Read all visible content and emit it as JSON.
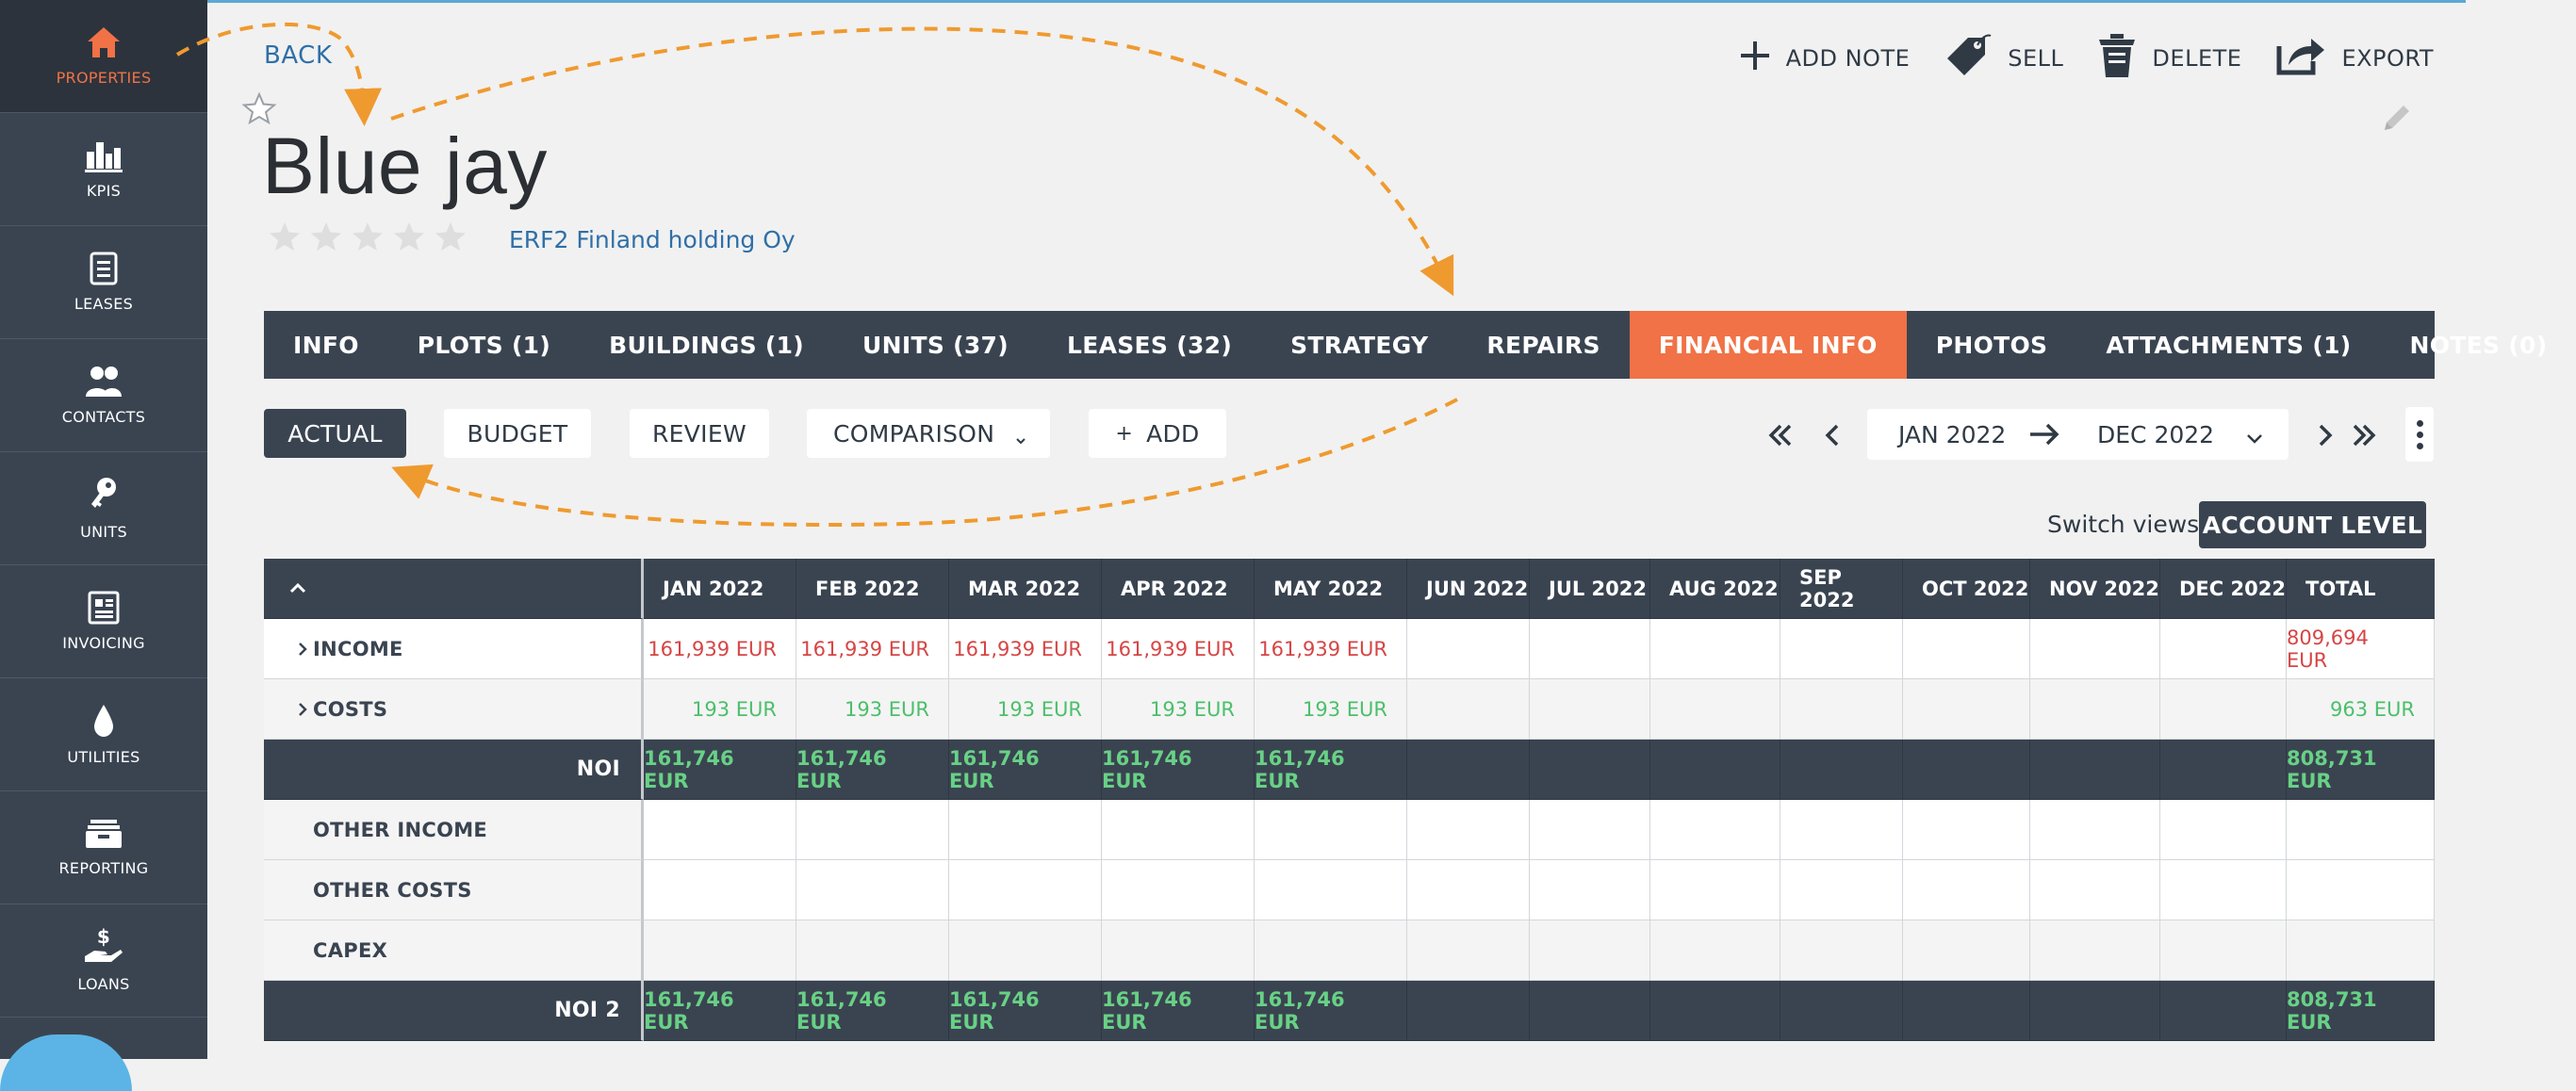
{
  "colors": {
    "sidebar": "#3a4451",
    "accent": "#f07246",
    "link": "#2f6fa8",
    "income_value": "#d64545",
    "cost_value": "#4bbf6b"
  },
  "sidebar": {
    "items": [
      {
        "label": "PROPERTIES",
        "icon": "home-icon"
      },
      {
        "label": "KPIS",
        "icon": "bar-chart-icon"
      },
      {
        "label": "LEASES",
        "icon": "document-icon"
      },
      {
        "label": "CONTACTS",
        "icon": "people-icon"
      },
      {
        "label": "UNITS",
        "icon": "key-icon"
      },
      {
        "label": "INVOICING",
        "icon": "invoice-icon"
      },
      {
        "label": "UTILITIES",
        "icon": "drop-icon"
      },
      {
        "label": "REPORTING",
        "icon": "archive-box-icon"
      },
      {
        "label": "LOANS",
        "icon": "dollar-hand-icon"
      }
    ]
  },
  "header": {
    "back": "BACK",
    "title": "Blue jay",
    "company": "ERF2 Finland holding Oy",
    "rating": 0,
    "actions": {
      "add_note": "ADD NOTE",
      "sell": "SELL",
      "delete": "DELETE",
      "export": "EXPORT"
    }
  },
  "tabs": [
    "INFO",
    "PLOTS (1)",
    "BUILDINGS (1)",
    "UNITS (37)",
    "LEASES (32)",
    "STRATEGY",
    "REPAIRS",
    "FINANCIAL INFO",
    "PHOTOS",
    "ATTACHMENTS (1)",
    "NOTES (0)"
  ],
  "active_tab": "FINANCIAL INFO",
  "toolbar": {
    "actual": "ACTUAL",
    "budget": "BUDGET",
    "review": "REVIEW",
    "comparison": "COMPARISON",
    "add": "ADD",
    "add_sign": "+",
    "date_from": "JAN 2022",
    "date_to": "DEC 2022"
  },
  "switch_views": {
    "label": "Switch views:",
    "button": "ACCOUNT LEVEL"
  },
  "table": {
    "columns": [
      "JAN 2022",
      "FEB 2022",
      "MAR 2022",
      "APR 2022",
      "MAY 2022",
      "JUN 2022",
      "JUL 2022",
      "AUG 2022",
      "SEP 2022",
      "OCT 2022",
      "NOV 2022",
      "DEC 2022",
      "TOTAL"
    ],
    "rows": [
      {
        "name": "INCOME",
        "values": [
          "161,939 EUR",
          "161,939 EUR",
          "161,939 EUR",
          "161,939 EUR",
          "161,939 EUR",
          "",
          "",
          "",
          "",
          "",
          "",
          "",
          "809,694 EUR"
        ]
      },
      {
        "name": "COSTS",
        "values": [
          "193 EUR",
          "193 EUR",
          "193 EUR",
          "193 EUR",
          "193 EUR",
          "",
          "",
          "",
          "",
          "",
          "",
          "",
          "963 EUR"
        ]
      },
      {
        "name": "NOI",
        "values": [
          "161,746 EUR",
          "161,746 EUR",
          "161,746 EUR",
          "161,746 EUR",
          "161,746 EUR",
          "",
          "",
          "",
          "",
          "",
          "",
          "",
          "808,731 EUR"
        ]
      },
      {
        "name": "OTHER INCOME",
        "values": [
          "",
          "",
          "",
          "",
          "",
          "",
          "",
          "",
          "",
          "",
          "",
          "",
          ""
        ]
      },
      {
        "name": "OTHER COSTS",
        "values": [
          "",
          "",
          "",
          "",
          "",
          "",
          "",
          "",
          "",
          "",
          "",
          "",
          ""
        ]
      },
      {
        "name": "CAPEX",
        "values": [
          "",
          "",
          "",
          "",
          "",
          "",
          "",
          "",
          "",
          "",
          "",
          "",
          ""
        ]
      },
      {
        "name": "NOI 2",
        "values": [
          "161,746 EUR",
          "161,746 EUR",
          "161,746 EUR",
          "161,746 EUR",
          "161,746 EUR",
          "",
          "",
          "",
          "",
          "",
          "",
          "",
          "808,731 EUR"
        ]
      }
    ]
  }
}
